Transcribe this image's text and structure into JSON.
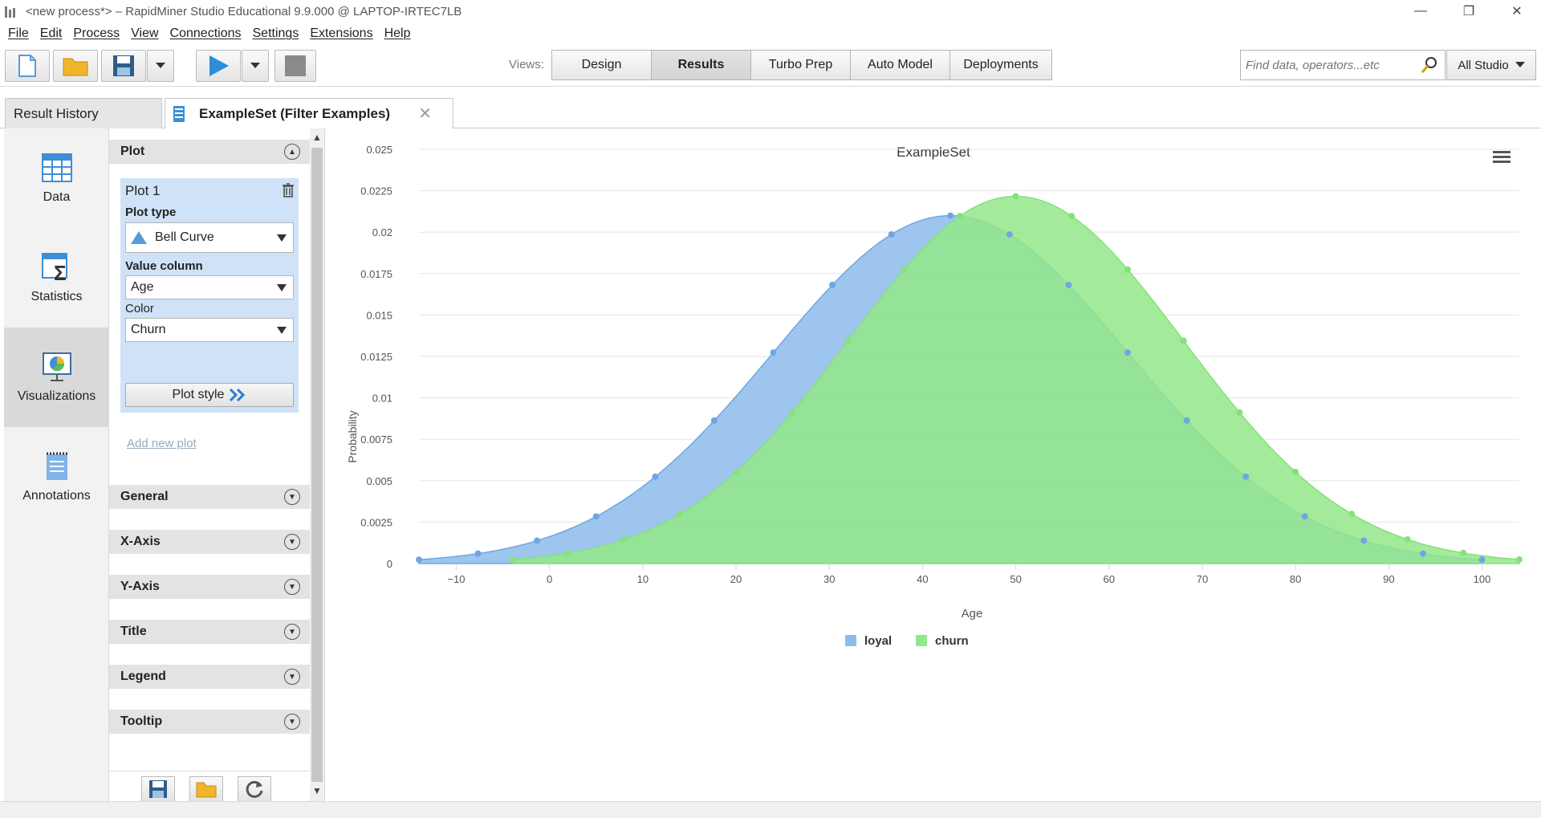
{
  "window": {
    "title": "<new process*> – RapidMiner Studio Educational 9.9.000 @ LAPTOP-IRTEC7LB"
  },
  "menu": [
    "File",
    "Edit",
    "Process",
    "View",
    "Connections",
    "Settings",
    "Extensions",
    "Help"
  ],
  "toolbar": {
    "views_label": "Views:",
    "views": [
      "Design",
      "Results",
      "Turbo Prep",
      "Auto Model",
      "Deployments"
    ],
    "active_view": "Results",
    "search_placeholder": "Find data, operators...etc",
    "scope": "All Studio"
  },
  "tabs": {
    "history": "Result History",
    "active": "ExampleSet (Filter Examples)"
  },
  "leftnav": [
    "Data",
    "Statistics",
    "Visualizations",
    "Annotations"
  ],
  "config": {
    "plot_section": "Plot",
    "plot_name": "Plot 1",
    "plot_type_label": "Plot type",
    "plot_type": "Bell Curve",
    "value_column_label": "Value column",
    "value_column": "Age",
    "color_label": "Color",
    "color": "Churn",
    "plot_style": "Plot style",
    "add_new_plot": "Add new plot",
    "sections": [
      "General",
      "X-Axis",
      "Y-Axis",
      "Title",
      "Legend",
      "Tooltip"
    ]
  },
  "chart_data": {
    "type": "area",
    "title": "ExampleSet",
    "xlabel": "Age",
    "ylabel": "Probability",
    "xlim": [
      -14,
      104
    ],
    "ylim": [
      0,
      0.025
    ],
    "x_ticks": [
      -10,
      0,
      10,
      20,
      30,
      40,
      50,
      60,
      70,
      80,
      90,
      100
    ],
    "y_ticks": [
      "0",
      "0.0025",
      "0.005",
      "0.0075",
      "0.01",
      "0.0125",
      "0.015",
      "0.0175",
      "0.02",
      "0.0225",
      "0.025"
    ],
    "legend_position": "bottom-center",
    "series": [
      {
        "name": "loyal",
        "color": "#8dbbeb",
        "marker_color": "#6fa6e2",
        "distribution": "normal",
        "mean": 43,
        "std": 19,
        "x_range": [
          -14,
          100
        ]
      },
      {
        "name": "churn",
        "color": "#93e88a",
        "marker_color": "#86e07c",
        "distribution": "normal",
        "mean": 50,
        "std": 18,
        "x_range": [
          -4,
          104
        ]
      }
    ]
  }
}
